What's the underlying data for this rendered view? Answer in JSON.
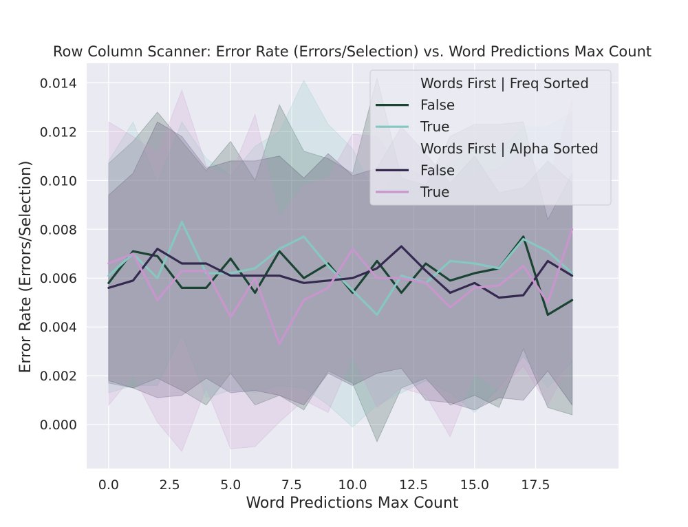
{
  "chart_data": {
    "type": "line",
    "title": "Row Column Scanner: Error Rate (Errors/Selection) vs. Word Predictions Max Count",
    "xlabel": "Word Predictions Max Count",
    "ylabel": "Error Rate (Errors/Selection)",
    "xlim": [
      -0.9,
      20.9
    ],
    "ylim": [
      -0.0018,
      0.0148
    ],
    "xticks": [
      "0.0",
      "2.5",
      "5.0",
      "7.5",
      "10.0",
      "12.5",
      "15.0",
      "17.5"
    ],
    "xtick_values": [
      0,
      2.5,
      5,
      7.5,
      10,
      12.5,
      15,
      17.5
    ],
    "yticks": [
      "0.000",
      "0.002",
      "0.004",
      "0.006",
      "0.008",
      "0.010",
      "0.012",
      "0.014"
    ],
    "ytick_values": [
      0,
      0.002,
      0.004,
      0.006,
      0.008,
      0.01,
      0.012,
      0.014
    ],
    "grid": true,
    "legend_position": "top-right",
    "background": "#eaeaf2",
    "x": [
      0,
      1,
      2,
      3,
      4,
      5,
      6,
      7,
      8,
      9,
      10,
      11,
      12,
      13,
      14,
      15,
      16,
      17,
      18,
      19
    ],
    "series": [
      {
        "name": "False",
        "group": "Words First | Freq Sorted",
        "color": "#1b4332",
        "values": [
          0.0058,
          0.0071,
          0.0069,
          0.0056,
          0.0056,
          0.0068,
          0.0054,
          0.0071,
          0.006,
          0.0066,
          0.0054,
          0.0067,
          0.0054,
          0.0066,
          0.0059,
          0.0062,
          0.0064,
          0.0077,
          0.0045,
          0.0051
        ],
        "upper": [
          0.0107,
          0.0116,
          0.0128,
          0.0116,
          0.0104,
          0.0116,
          0.01,
          0.0131,
          0.0112,
          0.0109,
          0.0103,
          0.0142,
          0.0101,
          0.0098,
          0.0118,
          0.0123,
          0.0123,
          0.0124,
          0.0084,
          0.0103
        ],
        "lower": [
          0.0017,
          0.0015,
          0.0019,
          0.0014,
          0.0008,
          0.0021,
          0.0008,
          0.0012,
          0.0006,
          0.0022,
          0.0017,
          -0.0007,
          0.0015,
          0.0019,
          0.0008,
          0.0012,
          0.0007,
          0.0031,
          0.0007,
          0.0004
        ]
      },
      {
        "name": "True",
        "group": "Words First | Freq Sorted",
        "color": "#87c7c1",
        "values": [
          0.0061,
          0.007,
          0.006,
          0.0083,
          0.0062,
          0.0062,
          0.0064,
          0.0072,
          0.0077,
          0.0065,
          0.0055,
          0.0045,
          0.0061,
          0.0058,
          0.0067,
          0.0066,
          0.0064,
          0.0076,
          0.0071,
          0.0062
        ],
        "upper": [
          0.0108,
          0.0124,
          0.0099,
          0.0124,
          0.0109,
          0.0102,
          0.0114,
          0.012,
          0.0141,
          0.0123,
          0.0113,
          0.0092,
          0.0106,
          0.0101,
          0.0107,
          0.0113,
          0.0112,
          0.0122,
          0.0122,
          0.0128
        ],
        "lower": [
          0.0013,
          0.0016,
          0.0016,
          0.0037,
          0.0011,
          0.0014,
          0.0013,
          0.0016,
          0.0015,
          0.0008,
          -0.0001,
          0.0008,
          0.0013,
          0.0018,
          0.0013,
          0.0005,
          0.0015,
          0.0028,
          0.0015,
          0.0026
        ]
      },
      {
        "name": "False",
        "group": "Words First | Alpha Sorted",
        "color": "#35294f",
        "values": [
          0.0056,
          0.0059,
          0.0072,
          0.0066,
          0.0066,
          0.0061,
          0.0061,
          0.0061,
          0.0058,
          0.0059,
          0.006,
          0.0064,
          0.0073,
          0.0063,
          0.0054,
          0.0058,
          0.0052,
          0.0053,
          0.0067,
          0.0061
        ],
        "upper": [
          0.0094,
          0.0103,
          0.0124,
          0.0118,
          0.0105,
          0.0108,
          0.0108,
          0.011,
          0.0101,
          0.0111,
          0.0102,
          0.0105,
          0.0122,
          0.0111,
          0.0099,
          0.011,
          0.0095,
          0.0097,
          0.0108,
          0.0099
        ],
        "lower": [
          0.0018,
          0.0015,
          0.0011,
          0.0012,
          0.0019,
          0.0013,
          0.0014,
          0.0012,
          0.0008,
          0.0021,
          0.0016,
          0.0021,
          0.0023,
          0.001,
          0.0009,
          0.0006,
          0.0011,
          0.001,
          0.0022,
          0.0008
        ]
      },
      {
        "name": "True",
        "group": "Words First | Alpha Sorted",
        "color": "#c896cc",
        "values": [
          0.0066,
          0.007,
          0.0051,
          0.0063,
          0.0063,
          0.0044,
          0.006,
          0.0033,
          0.0051,
          0.0056,
          0.0072,
          0.006,
          0.006,
          0.0058,
          0.0048,
          0.0056,
          0.0057,
          0.0065,
          0.005,
          0.008
        ],
        "upper": [
          0.0124,
          0.0118,
          0.0111,
          0.0137,
          0.0106,
          0.0102,
          0.0127,
          0.0085,
          0.0098,
          0.0101,
          0.0119,
          0.0118,
          0.0105,
          0.0103,
          0.0101,
          0.0102,
          0.0105,
          0.0113,
          0.0099,
          0.0133
        ],
        "lower": [
          0.0008,
          0.002,
          0.0001,
          -0.0011,
          0.0015,
          -0.001,
          -0.0009,
          0.0001,
          0.001,
          0.0005,
          0.0028,
          0.0007,
          0.0015,
          0.0012,
          -0.0005,
          0.0021,
          0.0014,
          0.0024,
          0.0008,
          0.0027
        ]
      }
    ],
    "legend": [
      {
        "type": "header",
        "text": "Words First | Freq Sorted"
      },
      {
        "type": "entry",
        "text": "False",
        "color": "#1b4332"
      },
      {
        "type": "entry",
        "text": "True",
        "color": "#87c7c1"
      },
      {
        "type": "header",
        "text": "Words First | Alpha Sorted"
      },
      {
        "type": "entry",
        "text": "False",
        "color": "#35294f"
      },
      {
        "type": "entry",
        "text": "True",
        "color": "#c896cc"
      }
    ]
  }
}
